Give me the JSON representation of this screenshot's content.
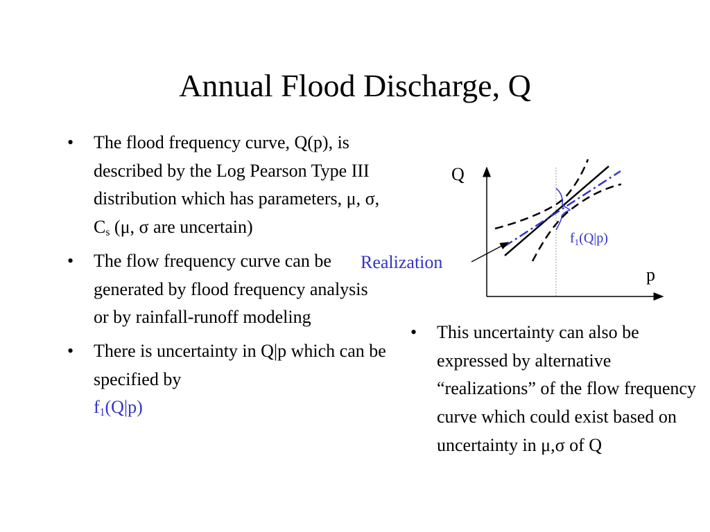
{
  "title": "Annual Flood Discharge, Q",
  "left_bullets": [
    {
      "text_main": "The flood frequency curve, Q(p), is described by the Log Pearson Type III distribution which has parameters, μ, σ, C",
      "text_sub": "s",
      "text_after": " (μ, σ are uncertain)"
    },
    {
      "text": "The flow frequency curve can be generated by flood frequency analysis or by rainfall-runoff modeling"
    },
    {
      "text": "There is uncertainty in Q|p which can be specified by",
      "f_base": "f",
      "f_sub": "1",
      "f_after": "(Q|p)"
    }
  ],
  "right_bullets": [
    {
      "text": "This uncertainty can also be expressed by alternative “realizations” of the flow frequency curve which could exist based on uncertainty in μ,σ of Q"
    }
  ],
  "bullet_glyph": "•",
  "diagram": {
    "y_axis_label": "Q",
    "x_axis_label": "p",
    "realization_label": "Realization",
    "density_label_base": "f",
    "density_label_sub": "1",
    "density_label_after": "(Q|p)",
    "colors": {
      "line": "#000000",
      "realization": "#3333cc",
      "density": "#3333cc"
    }
  }
}
